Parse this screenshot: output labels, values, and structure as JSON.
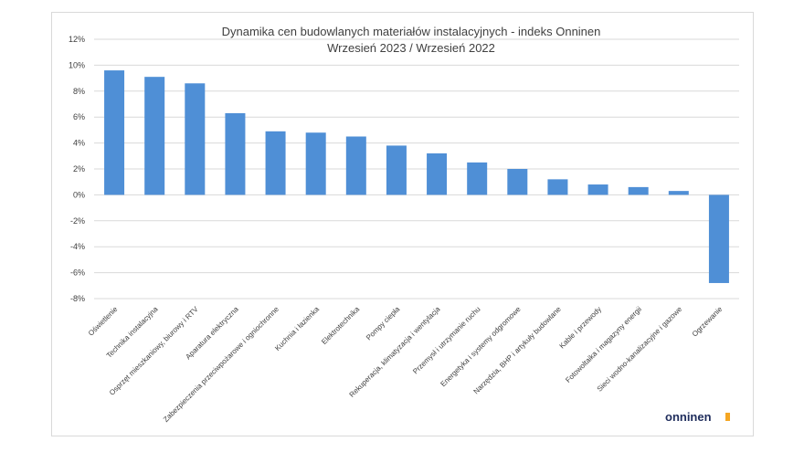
{
  "chart_data": {
    "type": "bar",
    "title": "Dynamika cen budowlanych materiałów instalacyjnych - indeks Onninen",
    "subtitle": "Wrzesień 2023 / Wrzesień 2022",
    "xlabel": "",
    "ylabel": "",
    "ylim": [
      -8,
      12
    ],
    "yticks": [
      12,
      10,
      8,
      6,
      4,
      2,
      0,
      -2,
      -4,
      -6,
      -8
    ],
    "ytick_labels": [
      "12%",
      "10%",
      "8%",
      "6%",
      "4%",
      "2%",
      "0%",
      "-2%",
      "-4%",
      "-6%",
      "-8%"
    ],
    "grid": true,
    "legend": "none",
    "bar_color": "#4f8fd6",
    "categories": [
      "Oświetlenie",
      "Technika instalacyjna",
      "Osprzęt mieszkaniowy, biurowy i RTV",
      "Aparatura elektryczna",
      "Zabezpieczenia przeciwpożarowe i ogniochronne",
      "Kuchnia i łazienka",
      "Elektrotechnika",
      "Pompy ciepła",
      "Rekuperacja, klimatyzacja i wentylacja",
      "Przemysł i utrzymanie ruchu",
      "Energetyka i systemy odgromowe",
      "Narzędzia, BHP i artykuły budowlane",
      "Kable i przewody",
      "Fotowoltaika i magazyny energii",
      "Sieci wodno-kanalizacyjne i gazowe",
      "Ogrzewanie"
    ],
    "values": [
      9.6,
      9.1,
      8.6,
      6.3,
      4.9,
      4.8,
      4.5,
      3.8,
      3.2,
      2.5,
      2.0,
      1.2,
      0.8,
      0.6,
      0.3,
      -6.8
    ]
  },
  "logo": {
    "text": "onninen",
    "mark_color": "#f5a623"
  }
}
